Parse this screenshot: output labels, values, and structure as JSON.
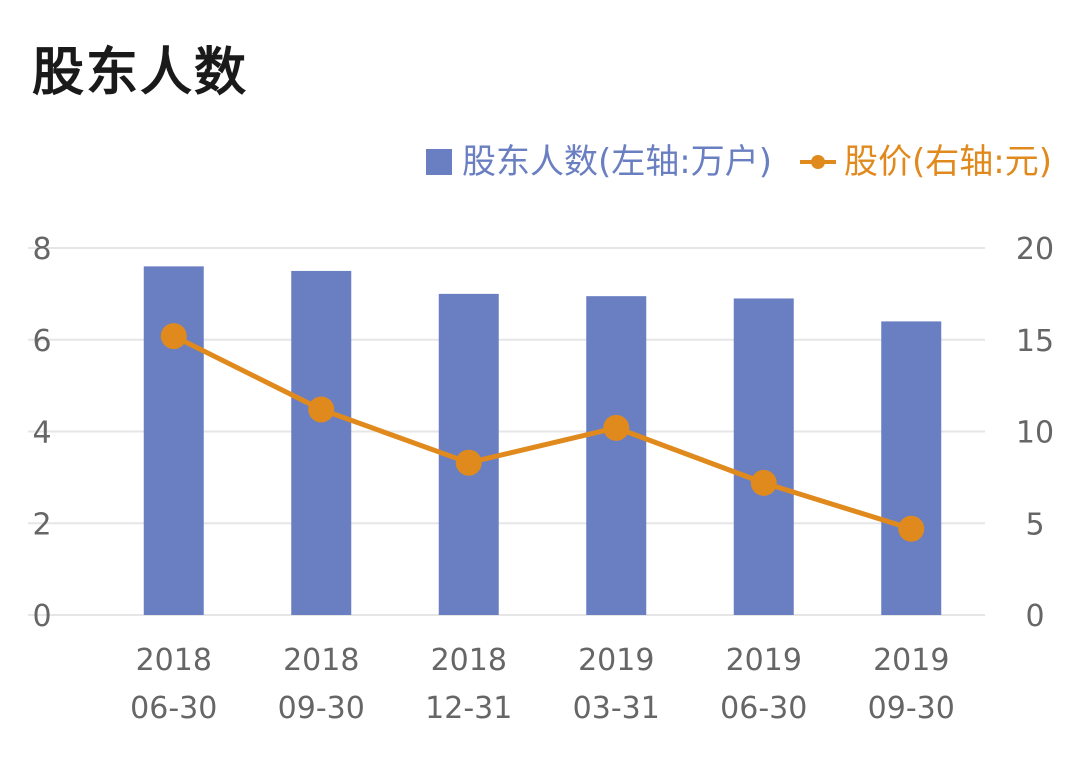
{
  "title": "股东人数",
  "colors": {
    "bar": "#6a7fc1",
    "line": "#e08a1e",
    "grid": "#e6e6e6",
    "axis_text": "#666666"
  },
  "legend": {
    "bar_label": "股东人数(左轴:万户)",
    "line_label": "股价(右轴:元)",
    "placement": "top-right"
  },
  "chart_data": {
    "type": "bar",
    "categories": [
      [
        "2018",
        "06-30"
      ],
      [
        "2018",
        "09-30"
      ],
      [
        "2018",
        "12-31"
      ],
      [
        "2019",
        "03-31"
      ],
      [
        "2019",
        "06-30"
      ],
      [
        "2019",
        "09-30"
      ]
    ],
    "series": [
      {
        "name": "股东人数(左轴:万户)",
        "type": "bar",
        "axis": "left",
        "values": [
          7.6,
          7.5,
          7.0,
          6.95,
          6.9,
          6.4
        ]
      },
      {
        "name": "股价(右轴:元)",
        "type": "line",
        "axis": "right",
        "values": [
          15.2,
          11.2,
          8.3,
          10.2,
          7.2,
          4.7
        ]
      }
    ],
    "left_axis": {
      "ylim": [
        0,
        8
      ],
      "ticks": [
        "0",
        "2",
        "4",
        "6",
        "8"
      ]
    },
    "right_axis": {
      "ylim": [
        0,
        20
      ],
      "ticks": [
        "0",
        "5",
        "10",
        "15",
        "20"
      ]
    },
    "grid": true
  }
}
